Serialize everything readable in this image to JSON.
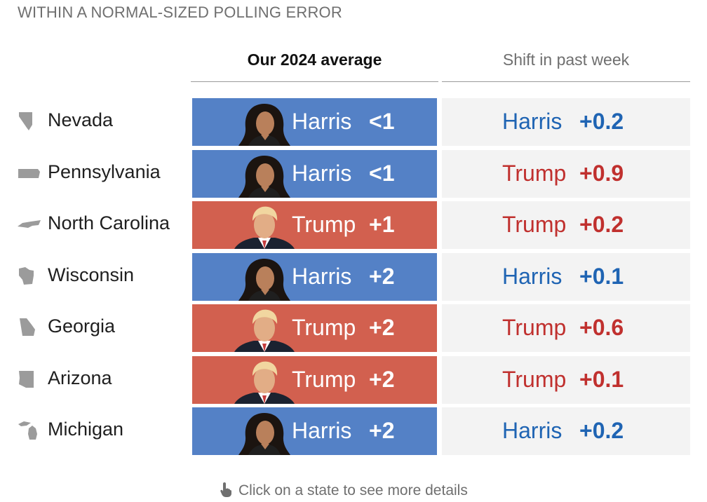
{
  "kicker": "WITHIN A NORMAL-SIZED POLLING ERROR",
  "headers": {
    "average": "Our 2024 average",
    "shift": "Shift in past week"
  },
  "colors": {
    "harris_fill": "#5481c6",
    "trump_fill": "#d2604f",
    "harris_text": "#1f64b3",
    "trump_text": "#c0302e",
    "shift_bg": "#f3f3f3"
  },
  "rows": [
    {
      "state": "Nevada",
      "icon": "nevada-icon",
      "leader": "Harris",
      "margin": "<1",
      "shift_leader": "Harris",
      "shift": "+0.2"
    },
    {
      "state": "Pennsylvania",
      "icon": "pennsylvania-icon",
      "leader": "Harris",
      "margin": "<1",
      "shift_leader": "Trump",
      "shift": "+0.9"
    },
    {
      "state": "North Carolina",
      "icon": "north-carolina-icon",
      "leader": "Trump",
      "margin": "+1",
      "shift_leader": "Trump",
      "shift": "+0.2"
    },
    {
      "state": "Wisconsin",
      "icon": "wisconsin-icon",
      "leader": "Harris",
      "margin": "+2",
      "shift_leader": "Harris",
      "shift": "+0.1"
    },
    {
      "state": "Georgia",
      "icon": "georgia-icon",
      "leader": "Trump",
      "margin": "+2",
      "shift_leader": "Trump",
      "shift": "+0.6"
    },
    {
      "state": "Arizona",
      "icon": "arizona-icon",
      "leader": "Trump",
      "margin": "+2",
      "shift_leader": "Trump",
      "shift": "+0.1"
    },
    {
      "state": "Michigan",
      "icon": "michigan-icon",
      "leader": "Harris",
      "margin": "+2",
      "shift_leader": "Harris",
      "shift": "+0.2"
    }
  ],
  "footer": {
    "hint": "Click on a state to see more details",
    "icon": "pointing-hand-icon"
  }
}
